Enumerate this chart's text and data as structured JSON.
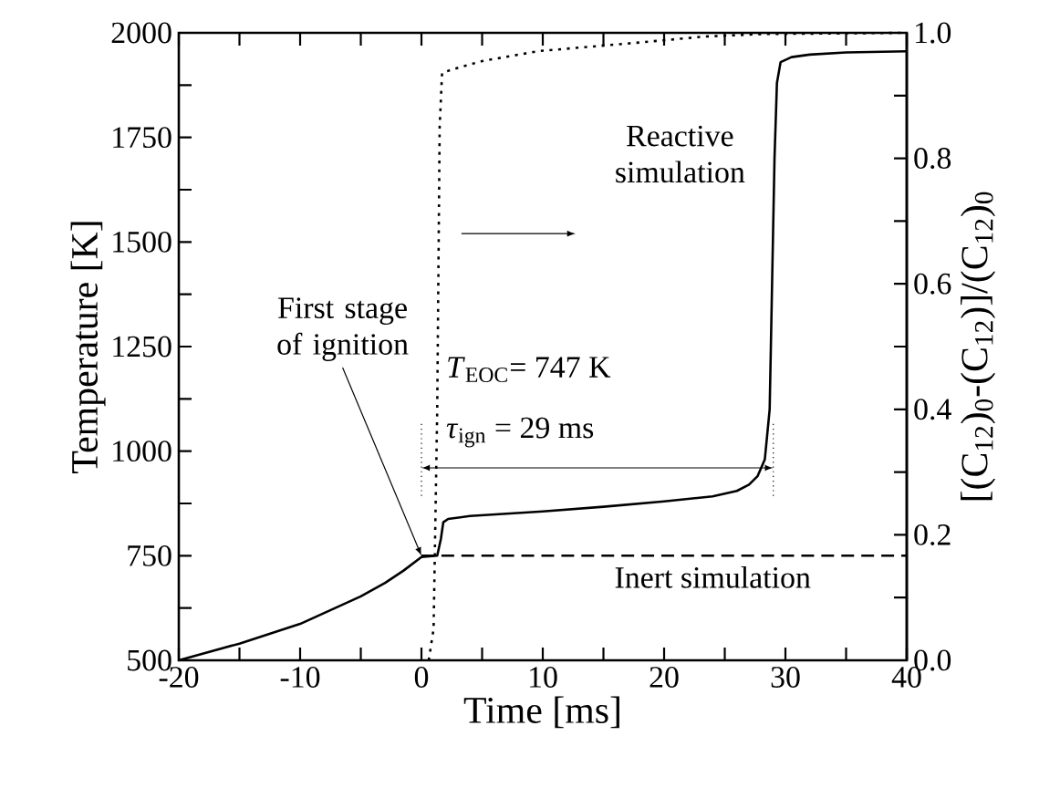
{
  "chart_data": {
    "type": "line",
    "xlabel": "Time [ms]",
    "ylabel": "Temperature [K]",
    "y2label": "[(C$_{12}$)$_{0}$-(C$_{12}$)]/(C$_{12}$)$_{0}$",
    "xlim": [
      -20,
      40
    ],
    "xticks": [
      -20,
      {
        "value": -15,
        "label": null
      },
      -10,
      {
        "value": -5,
        "label": null
      },
      0,
      {
        "value": 5,
        "label": null
      },
      10,
      {
        "value": 15,
        "label": null
      },
      20,
      {
        "value": 25,
        "label": null
      },
      30,
      {
        "value": 35,
        "label": null
      },
      40
    ],
    "ylim": [
      500,
      2000
    ],
    "yticks": [
      500,
      {
        "value": 625,
        "label": null
      },
      750,
      {
        "value": 875,
        "label": null
      },
      1000,
      {
        "value": 1125,
        "label": null
      },
      1250,
      {
        "value": 1375,
        "label": null
      },
      1500,
      {
        "value": 1625,
        "label": null
      },
      1750,
      {
        "value": 1875,
        "label": null
      },
      2000
    ],
    "y2lim": [
      0,
      1
    ],
    "y2ticks": [
      {
        "value": 0,
        "label": "0.0"
      },
      {
        "value": 0.1,
        "label": null
      },
      0.2,
      {
        "value": 0.3,
        "label": null
      },
      0.4,
      {
        "value": 0.5,
        "label": null
      },
      0.6,
      {
        "value": 0.7,
        "label": null
      },
      0.8,
      {
        "value": 0.9,
        "label": null
      },
      {
        "value": 1,
        "label": "1.0"
      }
    ],
    "annotations": [
      "*T*$_{EOC}$= 747 K",
      "*τ*$_{ign}$ = 29 ms",
      {
        "text": "First stage of ignition",
        "x": 0,
        "y": 750
      }
    ],
    "series": [
      {
        "name": "Reactive simulation",
        "color": "#000000",
        "line_style": "solid",
        "x": [
          -20,
          -15,
          -10,
          -5,
          -3,
          -1.5,
          0,
          1.3,
          1.6,
          1.8,
          2.2,
          4,
          10,
          15,
          20,
          24,
          26,
          27,
          27.7,
          28.3,
          28.7,
          28.9,
          29.1,
          29.3,
          29.6,
          30.5,
          32,
          35,
          40
        ],
        "values": [
          500,
          540,
          587,
          653,
          685,
          714,
          747,
          750,
          790,
          830,
          838,
          845,
          856,
          867,
          880,
          892,
          905,
          920,
          940,
          980,
          1100,
          1400,
          1700,
          1880,
          1930,
          1942,
          1948,
          1953,
          1956
        ]
      },
      {
        "name": "Inert simulation",
        "color": "#000000",
        "line_style": "dashed",
        "x": [
          0,
          40
        ],
        "values": [
          750,
          750
        ]
      },
      {
        "color": "#000000",
        "line_style": "dotted",
        "axis": "y2",
        "x": [
          0.6,
          1.0,
          1.3,
          1.5,
          1.7,
          2.6,
          5,
          9.7,
          14,
          18.2,
          23.3,
          28,
          40
        ],
        "values": [
          0,
          0.05,
          0.4,
          0.85,
          0.936,
          0.942,
          0.955,
          0.971,
          0.978,
          0.985,
          0.994,
          0.998,
          1.0
        ]
      }
    ]
  }
}
